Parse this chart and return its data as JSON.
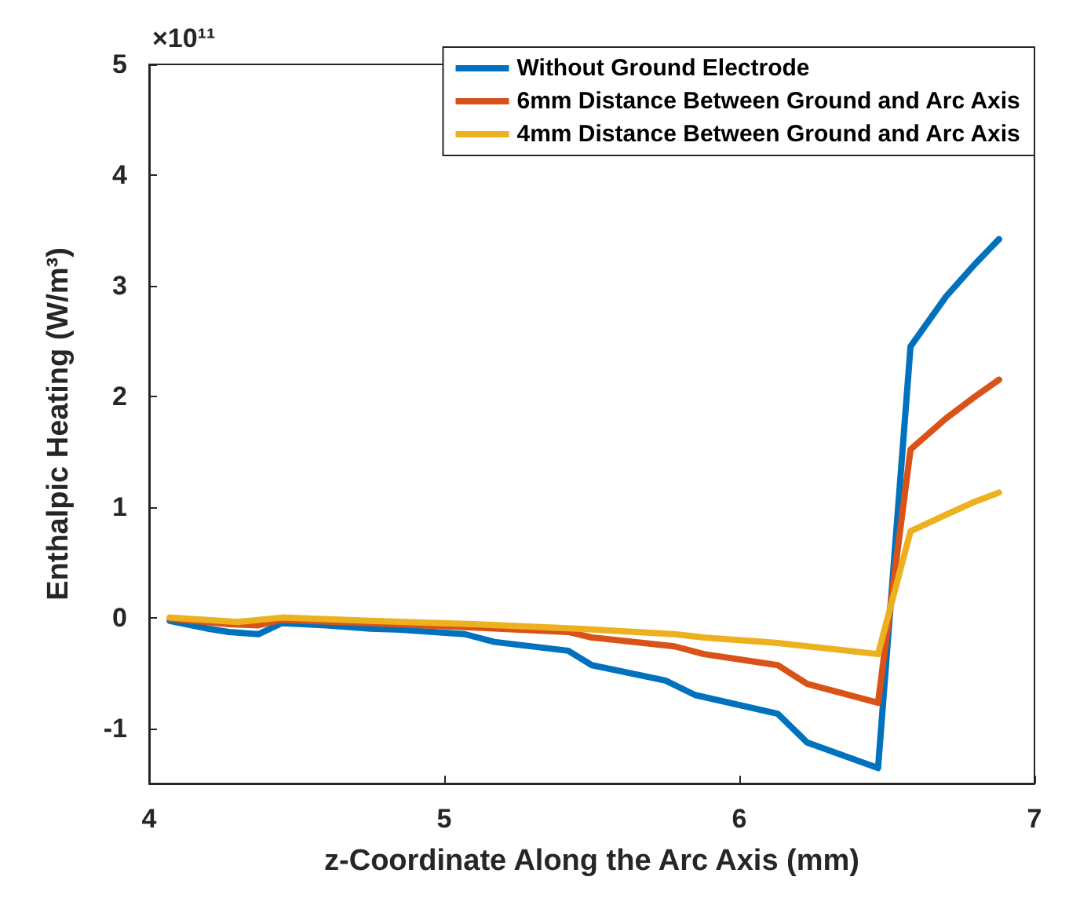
{
  "chart_data": {
    "type": "line",
    "xlabel": "z-Coordinate Along the Arc Axis (mm)",
    "ylabel": "Enthalpic Heating (W/m³)",
    "annotations": [
      "×10¹¹"
    ],
    "xlim": [
      4,
      7
    ],
    "xticks": [
      4,
      5,
      6,
      7
    ],
    "ylim": [
      -1.5,
      5
    ],
    "yticks": [
      -1,
      0,
      1,
      2,
      3,
      4,
      5
    ],
    "grid": false,
    "legend": "top right",
    "line_style": "solid",
    "marker": "none",
    "series": [
      {
        "name": "Without Ground Electrode",
        "color": "#0072bd",
        "x": [
          4.07,
          4.2,
          4.27,
          4.37,
          4.45,
          4.6,
          4.75,
          4.85,
          5.07,
          5.17,
          5.42,
          5.5,
          5.75,
          5.85,
          6.13,
          6.23,
          6.47,
          6.58,
          6.7,
          6.8,
          6.88
        ],
        "values": [
          -0.03,
          -0.1,
          -0.13,
          -0.15,
          -0.05,
          -0.07,
          -0.1,
          -0.11,
          -0.15,
          -0.22,
          -0.3,
          -0.43,
          -0.57,
          -0.7,
          -0.87,
          -1.13,
          -1.36,
          2.45,
          2.9,
          3.2,
          3.42
        ]
      },
      {
        "name": "6mm Distance Between Ground and Arc Axis",
        "color": "#d95319",
        "x": [
          4.07,
          4.27,
          4.37,
          4.45,
          4.75,
          5.1,
          5.42,
          5.5,
          5.78,
          5.88,
          6.13,
          6.23,
          6.47,
          6.58,
          6.7,
          6.8,
          6.88
        ],
        "values": [
          -0.01,
          -0.06,
          -0.07,
          -0.02,
          -0.05,
          -0.09,
          -0.13,
          -0.18,
          -0.26,
          -0.33,
          -0.43,
          -0.6,
          -0.77,
          1.52,
          1.8,
          2.0,
          2.15
        ]
      },
      {
        "name": "4mm Distance Between Ground and Arc Axis",
        "color": "#edb120",
        "x": [
          4.07,
          4.3,
          4.45,
          4.75,
          5.1,
          5.45,
          5.78,
          5.88,
          6.13,
          6.47,
          6.58,
          6.7,
          6.8,
          6.88
        ],
        "values": [
          0,
          -0.04,
          0,
          -0.03,
          -0.06,
          -0.1,
          -0.15,
          -0.18,
          -0.23,
          -0.33,
          0.78,
          0.93,
          1.05,
          1.13
        ]
      }
    ]
  }
}
